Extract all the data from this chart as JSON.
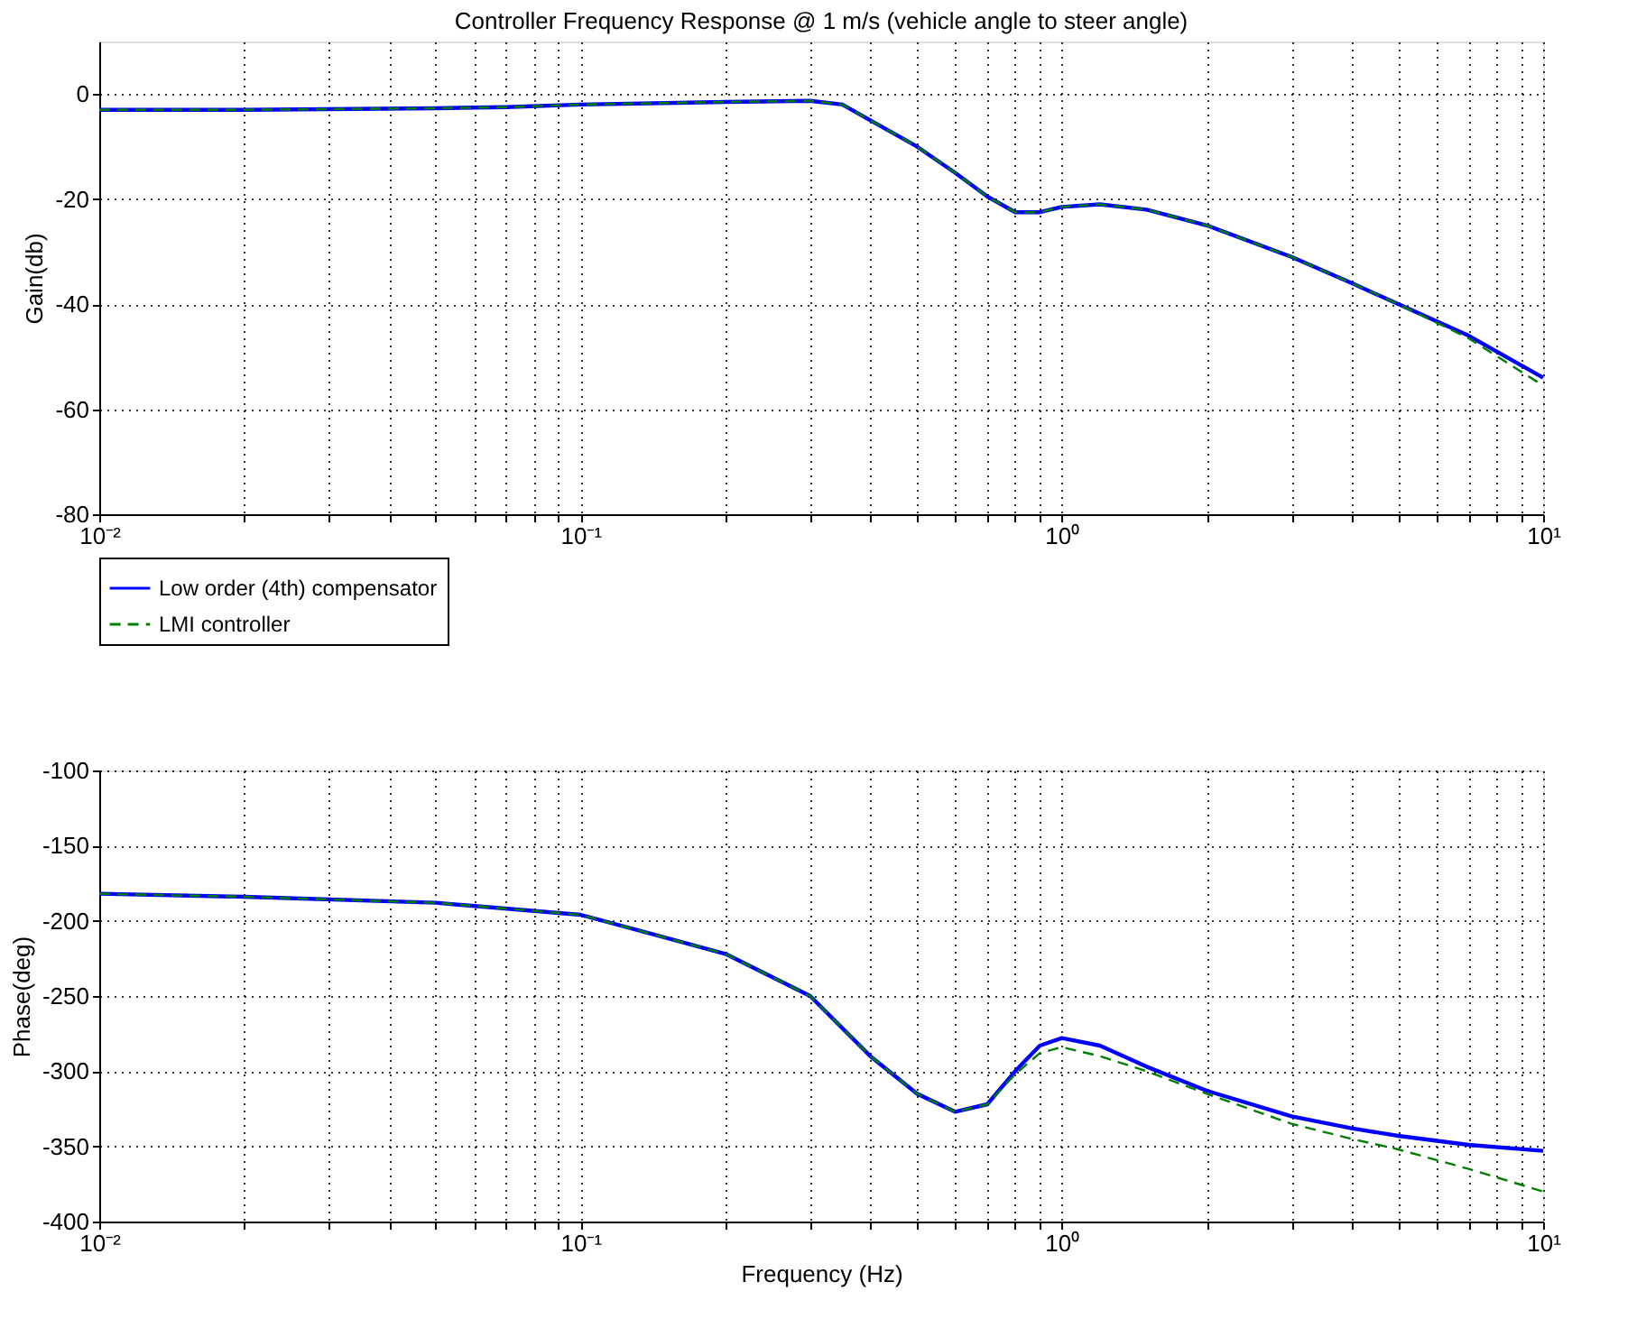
{
  "chart_data": [
    {
      "type": "line",
      "title": "Controller Frequency Response @ 1 m/s (vehicle angle to steer angle)",
      "ylabel": "Gain(db)",
      "log": "x",
      "x": [
        0.01,
        0.02,
        0.05,
        0.07,
        0.1,
        0.2,
        0.3,
        0.35,
        0.4,
        0.5,
        0.6,
        0.7,
        0.8,
        0.9,
        1,
        1.2,
        1.5,
        2,
        3,
        4,
        5,
        7,
        10
      ],
      "series": [
        {
          "name": "Low order (4th) compensator",
          "color": "#0000ff",
          "line_style": "solid",
          "values": [
            -3,
            -3,
            -2.7,
            -2.5,
            -2,
            -1.5,
            -1.3,
            -2,
            -5,
            -10,
            -15,
            -19.5,
            -22.5,
            -22.5,
            -21.5,
            -21,
            -22,
            -25,
            -31,
            -36,
            -40,
            -46,
            -54
          ]
        },
        {
          "name": "LMI controller",
          "color": "#008000",
          "line_style": "dashed",
          "values": [
            -3,
            -3,
            -2.7,
            -2.5,
            -2,
            -1.5,
            -1.3,
            -2,
            -5,
            -10,
            -15,
            -19.5,
            -22.5,
            -22.5,
            -21.5,
            -21,
            -22,
            -25,
            -31,
            -36,
            -40,
            -46.5,
            -55.5
          ]
        }
      ],
      "xlim": [
        0.01,
        10
      ],
      "xticks": [
        {
          "value": 0.01,
          "label": "10⁻²"
        },
        {
          "value": 0.02,
          "label": null
        },
        {
          "value": 0.03,
          "label": null
        },
        {
          "value": 0.04,
          "label": null
        },
        {
          "value": 0.05,
          "label": null
        },
        {
          "value": 0.06,
          "label": null
        },
        {
          "value": 0.07,
          "label": null
        },
        {
          "value": 0.08,
          "label": null
        },
        {
          "value": 0.09,
          "label": null
        },
        {
          "value": 0.1,
          "label": "10⁻¹"
        },
        {
          "value": 0.2,
          "label": null
        },
        {
          "value": 0.3,
          "label": null
        },
        {
          "value": 0.4,
          "label": null
        },
        {
          "value": 0.5,
          "label": null
        },
        {
          "value": 0.6,
          "label": null
        },
        {
          "value": 0.7,
          "label": null
        },
        {
          "value": 0.8,
          "label": null
        },
        {
          "value": 0.9,
          "label": null
        },
        {
          "value": 1,
          "label": "10⁰"
        },
        {
          "value": 2,
          "label": null
        },
        {
          "value": 3,
          "label": null
        },
        {
          "value": 4,
          "label": null
        },
        {
          "value": 5,
          "label": null
        },
        {
          "value": 6,
          "label": null
        },
        {
          "value": 7,
          "label": null
        },
        {
          "value": 8,
          "label": null
        },
        {
          "value": 9,
          "label": null
        },
        {
          "value": 10,
          "label": "10¹"
        }
      ],
      "ylim": [
        -80,
        10
      ],
      "yticks": [
        -80,
        -60,
        -40,
        -20,
        0
      ],
      "grid": true,
      "legend": "bottom left"
    },
    {
      "type": "line",
      "ylabel": "Phase(deg)",
      "xlabel": "Frequency (Hz)",
      "log": "x",
      "x": [
        0.01,
        0.02,
        0.05,
        0.1,
        0.2,
        0.3,
        0.4,
        0.5,
        0.6,
        0.7,
        0.8,
        0.9,
        1,
        1.2,
        1.5,
        2,
        3,
        4,
        5,
        7,
        10
      ],
      "series": [
        {
          "color": "#0000ff",
          "line_style": "solid",
          "values": [
            -182,
            -184,
            -188,
            -196,
            -222,
            -250,
            -290,
            -315,
            -327,
            -322,
            -300,
            -283,
            -278,
            -283,
            -297,
            -313,
            -330,
            -338,
            -343,
            -349,
            -353
          ]
        },
        {
          "color": "#008000",
          "line_style": "dashed",
          "values": [
            -182,
            -184,
            -188,
            -196,
            -222,
            -250,
            -290,
            -315,
            -327,
            -322,
            -302,
            -288,
            -284,
            -290,
            -300,
            -315,
            -335,
            -345,
            -352,
            -365,
            -380
          ]
        }
      ],
      "xlim": [
        0.01,
        10
      ],
      "xticks": [
        {
          "value": 0.01,
          "label": "10⁻²"
        },
        {
          "value": 0.02,
          "label": null
        },
        {
          "value": 0.03,
          "label": null
        },
        {
          "value": 0.04,
          "label": null
        },
        {
          "value": 0.05,
          "label": null
        },
        {
          "value": 0.06,
          "label": null
        },
        {
          "value": 0.07,
          "label": null
        },
        {
          "value": 0.08,
          "label": null
        },
        {
          "value": 0.09,
          "label": null
        },
        {
          "value": 0.1,
          "label": "10⁻¹"
        },
        {
          "value": 0.2,
          "label": null
        },
        {
          "value": 0.3,
          "label": null
        },
        {
          "value": 0.4,
          "label": null
        },
        {
          "value": 0.5,
          "label": null
        },
        {
          "value": 0.6,
          "label": null
        },
        {
          "value": 0.7,
          "label": null
        },
        {
          "value": 0.8,
          "label": null
        },
        {
          "value": 0.9,
          "label": null
        },
        {
          "value": 1,
          "label": "10⁰"
        },
        {
          "value": 2,
          "label": null
        },
        {
          "value": 3,
          "label": null
        },
        {
          "value": 4,
          "label": null
        },
        {
          "value": 5,
          "label": null
        },
        {
          "value": 6,
          "label": null
        },
        {
          "value": 7,
          "label": null
        },
        {
          "value": 8,
          "label": null
        },
        {
          "value": 9,
          "label": null
        },
        {
          "value": 10,
          "label": "10¹"
        }
      ],
      "ylim": [
        -400,
        -100
      ],
      "yticks": [
        -400,
        -350,
        -300,
        -250,
        -200,
        -150,
        -100
      ],
      "grid": true
    }
  ]
}
